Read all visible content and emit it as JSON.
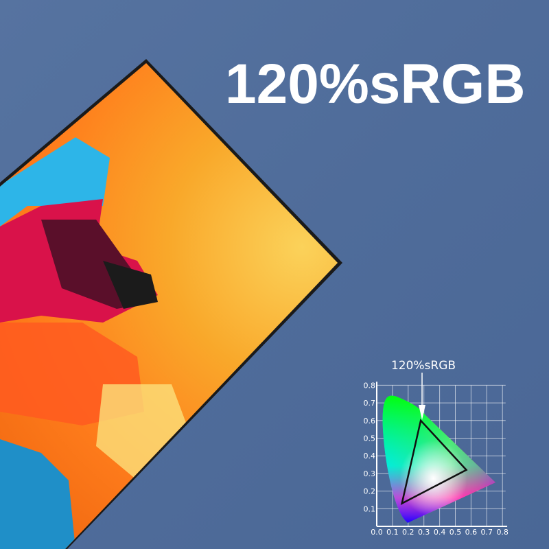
{
  "headline": "120%sRGB",
  "artwork": {
    "description_icon": "abstract-wave-artwork",
    "colors": [
      "#f7a52a",
      "#ff7a1a",
      "#d9124a",
      "#2db5e8",
      "#1a1a1a"
    ]
  },
  "gamut_chart": {
    "label": "120%sRGB",
    "x_ticks": [
      "0.0",
      "0.1",
      "0.2",
      "0.3",
      "0.4",
      "0.5",
      "0.6",
      "0.7",
      "0.8"
    ],
    "y_ticks": [
      "0.1",
      "0.2",
      "0.3",
      "0.4",
      "0.5",
      "0.6",
      "0.7",
      "0.8"
    ],
    "xlim": [
      0,
      0.8
    ],
    "ylim": [
      0,
      0.8
    ],
    "triangle": [
      [
        0.57,
        0.32
      ],
      [
        0.28,
        0.6
      ],
      [
        0.16,
        0.13
      ]
    ],
    "grid": true
  }
}
